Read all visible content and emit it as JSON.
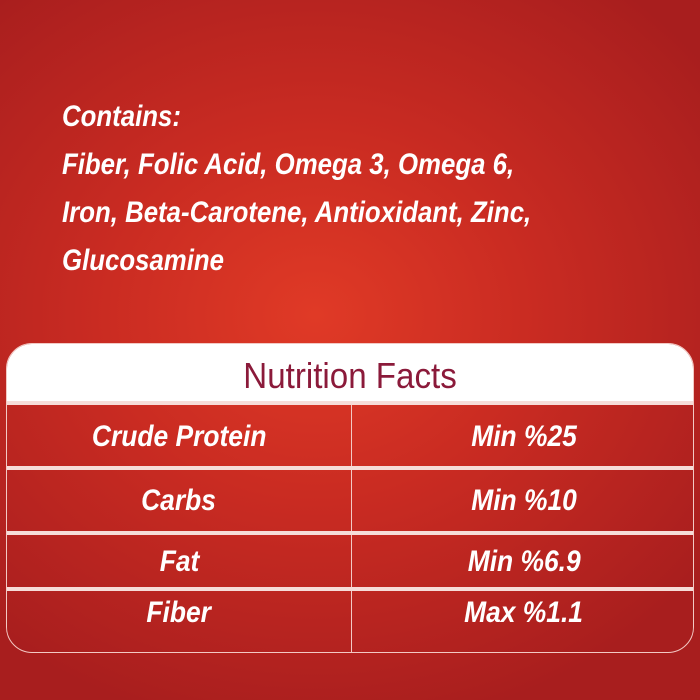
{
  "contains": {
    "heading": "Contains:",
    "lines": [
      "Fiber, Folic Acid, Omega 3, Omega 6,",
      "Iron, Beta-Carotene, Antioxidant, Zinc,",
      "Glucosamine"
    ]
  },
  "nutrition": {
    "title": "Nutrition Facts",
    "rows": [
      {
        "name": "Crude Protein",
        "value": "Min %25"
      },
      {
        "name": "Carbs",
        "value": "Min %10"
      },
      {
        "name": "Fat",
        "value": "Min %6.9"
      },
      {
        "name": "Fiber",
        "value": "Max %1.1"
      }
    ]
  },
  "colors": {
    "background": "#c92b22",
    "title_text": "#8b1a3a"
  }
}
